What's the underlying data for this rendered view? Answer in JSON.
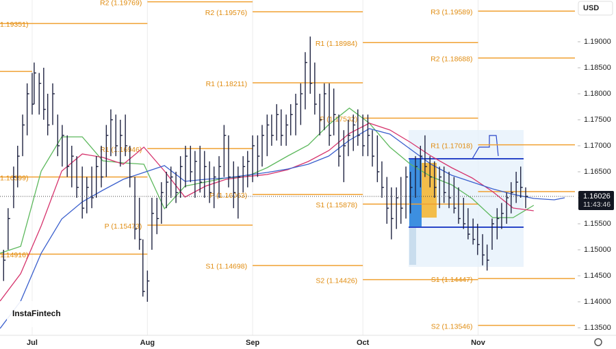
{
  "chart_data": {
    "type": "ohlc",
    "currency": "USD",
    "watermark": "InstaFintech",
    "price": 1.16026,
    "price_time": "11:43:46",
    "xlim": [
      -6.42,
      108.33
    ],
    "ylim": [
      1.13355,
      1.19803
    ],
    "xticks": [
      {
        "value": 0,
        "label": "Jul"
      },
      {
        "value": 23,
        "label": "Aug"
      },
      {
        "value": 44,
        "label": "Sep"
      },
      {
        "value": 66,
        "label": "Oct"
      },
      {
        "value": 89,
        "label": "Nov"
      }
    ],
    "yticks": [
      {
        "value": 1.135,
        "label": "1.13500"
      },
      {
        "value": 1.14,
        "label": "1.14000"
      },
      {
        "value": 1.145,
        "label": "1.14500"
      },
      {
        "value": 1.15,
        "label": "1.15000"
      },
      {
        "value": 1.155,
        "label": "1.15500"
      },
      {
        "value": 1.16,
        "label": "1.16000"
      },
      {
        "value": 1.165,
        "label": "1.16500"
      },
      {
        "value": 1.17,
        "label": "1.17000"
      },
      {
        "value": 1.175,
        "label": "1.17500"
      },
      {
        "value": 1.18,
        "label": "1.18000"
      },
      {
        "value": 1.185,
        "label": "1.18500"
      },
      {
        "value": 1.19,
        "label": "1.19000"
      }
    ],
    "x_grid": true,
    "bar_color": "#1e2240",
    "level_color": "#f0a030",
    "bars": {
      "x": [
        -5.7,
        -4.8,
        -3.7,
        -2.9,
        -1.9,
        -1.0,
        0,
        0.4,
        1.4,
        2.3,
        3.1,
        4.1,
        5.1,
        6.0,
        7.0,
        7.9,
        8.9,
        10.0,
        10.9,
        11.9,
        12.8,
        13.8,
        14.8,
        15.7,
        16.7,
        17.6,
        18.6,
        19.5,
        20.5,
        21.4,
        22.1,
        23.0,
        23.9,
        24.9,
        25.8,
        26.8,
        27.7,
        28.7,
        29.6,
        30.6,
        31.6,
        32.5,
        33.5,
        34.4,
        35.4,
        36.3,
        37.3,
        38.3,
        39.2,
        40.2,
        41.1,
        42.1,
        43.0,
        44.0,
        45.0,
        45.9,
        46.9,
        47.8,
        48.8,
        49.7,
        50.7,
        51.6,
        52.6,
        53.6,
        54.5,
        55.5,
        56.4,
        57.4,
        58.3,
        59.3,
        60.2,
        61.2,
        62.2,
        63.1,
        64.1,
        65.0,
        66.0,
        67.0,
        67.9,
        68.9,
        69.8,
        70.8,
        71.7,
        72.7,
        73.6,
        74.6,
        75.5,
        76.5,
        77.5,
        78.4,
        79.4,
        80.3,
        81.3,
        82.2,
        83.2,
        84.2,
        85.1,
        86.1,
        87.0,
        88.0,
        88.9,
        89.9,
        90.8,
        91.8,
        92.8,
        93.7,
        94.7,
        95.6,
        96.6,
        97.5,
        98.5
      ],
      "high": [
        1.15,
        1.158,
        1.166,
        1.17,
        1.176,
        1.182,
        1.184,
        1.186,
        1.184,
        1.185,
        1.18,
        1.182,
        1.176,
        1.174,
        1.172,
        1.17,
        1.168,
        1.166,
        1.164,
        1.166,
        1.168,
        1.17,
        1.174,
        1.177,
        1.176,
        1.175,
        1.176,
        1.17,
        1.164,
        1.16,
        1.152,
        1.146,
        1.16,
        1.16,
        1.163,
        1.165,
        1.166,
        1.165,
        1.168,
        1.17,
        1.17,
        1.169,
        1.17,
        1.169,
        1.167,
        1.166,
        1.168,
        1.174,
        1.172,
        1.167,
        1.166,
        1.168,
        1.169,
        1.172,
        1.172,
        1.174,
        1.176,
        1.176,
        1.178,
        1.177,
        1.176,
        1.178,
        1.18,
        1.182,
        1.188,
        1.191,
        1.186,
        1.18,
        1.182,
        1.182,
        1.181,
        1.176,
        1.173,
        1.175,
        1.176,
        1.177,
        1.176,
        1.176,
        1.173,
        1.172,
        1.167,
        1.164,
        1.162,
        1.162,
        1.164,
        1.166,
        1.165,
        1.168,
        1.17,
        1.172,
        1.168,
        1.167,
        1.166,
        1.166,
        1.165,
        1.164,
        1.162,
        1.16,
        1.158,
        1.156,
        1.155,
        1.153,
        1.151,
        1.156,
        1.158,
        1.159,
        1.161,
        1.163,
        1.165,
        1.166,
        1.162
      ],
      "low": [
        1.144,
        1.15,
        1.158,
        1.162,
        1.168,
        1.172,
        1.176,
        1.178,
        1.176,
        1.175,
        1.172,
        1.174,
        1.168,
        1.166,
        1.164,
        1.162,
        1.16,
        1.156,
        1.157,
        1.158,
        1.16,
        1.162,
        1.164,
        1.168,
        1.168,
        1.166,
        1.168,
        1.162,
        1.152,
        1.15,
        1.141,
        1.14,
        1.15,
        1.153,
        1.155,
        1.158,
        1.16,
        1.159,
        1.16,
        1.162,
        1.163,
        1.16,
        1.161,
        1.16,
        1.159,
        1.158,
        1.16,
        1.164,
        1.162,
        1.158,
        1.156,
        1.161,
        1.162,
        1.163,
        1.164,
        1.166,
        1.168,
        1.17,
        1.171,
        1.17,
        1.17,
        1.172,
        1.172,
        1.174,
        1.177,
        1.18,
        1.176,
        1.172,
        1.173,
        1.17,
        1.172,
        1.166,
        1.163,
        1.168,
        1.169,
        1.17,
        1.168,
        1.168,
        1.166,
        1.163,
        1.16,
        1.155,
        1.152,
        1.154,
        1.155,
        1.156,
        1.157,
        1.16,
        1.162,
        1.164,
        1.162,
        1.16,
        1.158,
        1.159,
        1.158,
        1.157,
        1.155,
        1.154,
        1.152,
        1.151,
        1.149,
        1.147,
        1.146,
        1.15,
        1.152,
        1.154,
        1.155,
        1.157,
        1.159,
        1.16,
        1.158
      ],
      "close": [
        1.148,
        1.156,
        1.164,
        1.168,
        1.174,
        1.18,
        1.178,
        1.184,
        1.182,
        1.177,
        1.174,
        1.18,
        1.17,
        1.172,
        1.166,
        1.168,
        1.162,
        1.158,
        1.162,
        1.16,
        1.166,
        1.164,
        1.172,
        1.175,
        1.17,
        1.172,
        1.17,
        1.164,
        1.154,
        1.152,
        1.142,
        1.144,
        1.157,
        1.156,
        1.161,
        1.163,
        1.164,
        1.161,
        1.166,
        1.168,
        1.165,
        1.167,
        1.163,
        1.166,
        1.161,
        1.164,
        1.166,
        1.172,
        1.164,
        1.161,
        1.164,
        1.166,
        1.167,
        1.17,
        1.168,
        1.172,
        1.174,
        1.172,
        1.176,
        1.172,
        1.174,
        1.176,
        1.178,
        1.18,
        1.186,
        1.182,
        1.178,
        1.175,
        1.18,
        1.172,
        1.176,
        1.168,
        1.17,
        1.172,
        1.174,
        1.172,
        1.17,
        1.172,
        1.168,
        1.165,
        1.162,
        1.158,
        1.156,
        1.16,
        1.158,
        1.164,
        1.162,
        1.166,
        1.168,
        1.166,
        1.164,
        1.162,
        1.164,
        1.161,
        1.16,
        1.158,
        1.156,
        1.155,
        1.153,
        1.152,
        1.151,
        1.149,
        1.148,
        1.155,
        1.156,
        1.157,
        1.16,
        1.161,
        1.163,
        1.162,
        1.1603
      ]
    },
    "ma_x": [
      -6.4,
      -2.3,
      1.8,
      5.9,
      10.0,
      14.1,
      18.2,
      22.3,
      26.4,
      30.5,
      34.6,
      38.7,
      42.8,
      46.9,
      51.0,
      55.1,
      59.2,
      63.3,
      67.3,
      71.4,
      75.5,
      79.6,
      83.7,
      87.8,
      91.9,
      96.0,
      100.1,
      104.2,
      106.3
    ],
    "series": [
      {
        "color": "#5cb85c",
        "values": [
          1.14934,
          1.15066,
          1.16513,
          1.17171,
          1.17171,
          1.16711,
          1.16671,
          1.16645,
          1.15789,
          1.16224,
          1.16303,
          1.16382,
          1.16408,
          1.16579,
          1.16803,
          1.17013,
          1.17408,
          1.17724,
          1.17434,
          1.16974,
          1.16645,
          1.16408,
          1.1625,
          1.15987,
          1.15618,
          1.15618,
          1.15855,
          null,
          null
        ]
      },
      {
        "color": "#d6336c",
        "values": [
          1.14013,
          1.1454,
          1.15461,
          1.16513,
          1.16842,
          1.16776,
          1.16645,
          1.16974,
          1.16513,
          1.16013,
          1.16224,
          1.16355,
          1.16408,
          1.16447,
          1.1654,
          1.16697,
          1.16908,
          1.17237,
          1.17434,
          1.17303,
          1.17066,
          1.16803,
          1.16579,
          1.16382,
          1.16118,
          1.15803,
          1.1575,
          null,
          null
        ]
      },
      {
        "color": "#3a5fcd",
        "values": [
          1.13487,
          1.14013,
          1.14934,
          1.15592,
          1.15921,
          1.16145,
          1.16355,
          1.16487,
          1.16618,
          1.16316,
          1.16355,
          1.16382,
          1.16434,
          1.16487,
          1.16553,
          1.16645,
          1.16803,
          1.17105,
          1.17329,
          1.17224,
          1.16934,
          1.16645,
          1.16434,
          1.16303,
          1.16171,
          1.16066,
          1.15987,
          1.15961,
          1.16
        ]
      }
    ],
    "levels": [
      {
        "value": 1.1843,
        "x": [
          -6.42,
          0
        ]
      },
      {
        "label": "1.19351)",
        "value": 1.19351,
        "x": [
          -6.42,
          23
        ]
      },
      {
        "label": "1.16399)",
        "value": 1.16399,
        "x": [
          -6.42,
          23
        ]
      },
      {
        "label": "1.14916)",
        "value": 1.14916,
        "x": [
          -6.42,
          23
        ]
      },
      {
        "label": "R2 (1.19769)",
        "value": 1.19769,
        "x": [
          23,
          44
        ]
      },
      {
        "label": "R1 (1.16946)",
        "value": 1.16946,
        "x": [
          23,
          44
        ]
      },
      {
        "label": "P (1.15473)",
        "value": 1.15473,
        "x": [
          23,
          44
        ]
      },
      {
        "label": "R2 (1.19576)",
        "value": 1.19576,
        "x": [
          44,
          66
        ]
      },
      {
        "label": "R1 (1.18211)",
        "value": 1.18211,
        "x": [
          44,
          66
        ]
      },
      {
        "label": "P (1.16063)",
        "value": 1.16063,
        "x": [
          44,
          66
        ]
      },
      {
        "label": "S1 (1.14698)",
        "value": 1.14698,
        "x": [
          44,
          66
        ]
      },
      {
        "label": "R1 (1.18984)",
        "value": 1.18984,
        "x": [
          66,
          89
        ]
      },
      {
        "label": "P (1.17532)",
        "value": 1.17532,
        "x": [
          66,
          89
        ]
      },
      {
        "label": "S1 (1.15878)",
        "value": 1.15878,
        "x": [
          66,
          89
        ]
      },
      {
        "label": "S2 (1.14426)",
        "value": 1.14426,
        "x": [
          66,
          89
        ]
      },
      {
        "label": "R3 (1.19589)",
        "value": 1.19589,
        "x": [
          89,
          108.33
        ]
      },
      {
        "label": "R2 (1.18688)",
        "value": 1.18688,
        "x": [
          89,
          108.33
        ]
      },
      {
        "label": "R1 (1.17018)",
        "value": 1.17018,
        "x": [
          89,
          108.33
        ]
      },
      {
        "value": 1.16118,
        "x": [
          89,
          108.33
        ]
      },
      {
        "label": "S1 (1.14447)",
        "value": 1.14447,
        "x": [
          89,
          108.33
        ]
      },
      {
        "label": "S2 (1.13546)",
        "value": 1.13546,
        "x": [
          89,
          108.33
        ]
      }
    ]
  }
}
